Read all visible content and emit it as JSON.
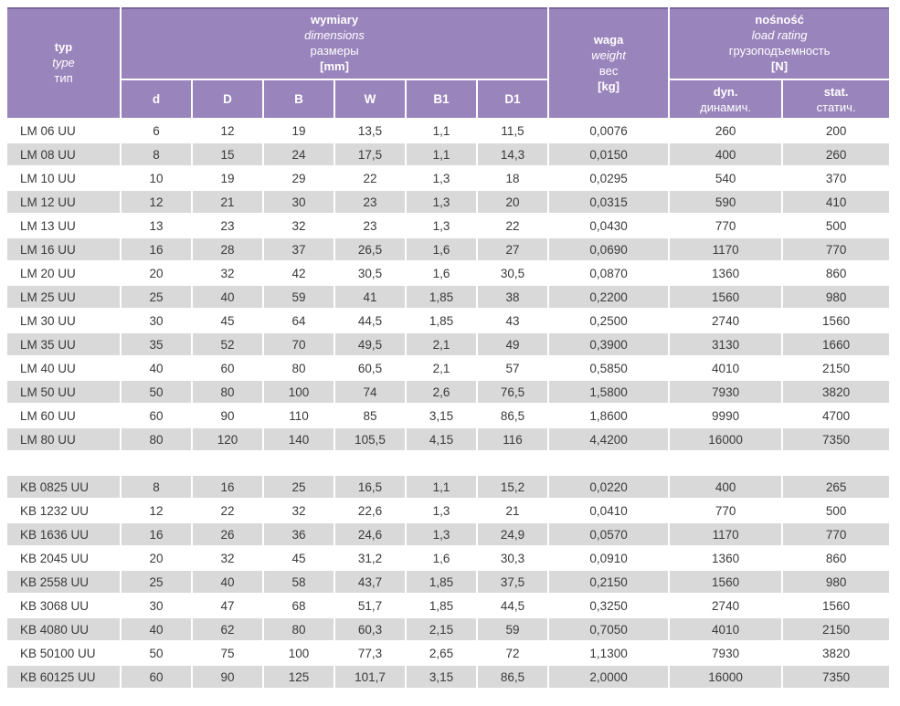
{
  "colors": {
    "header_purple": "#9a84bc",
    "header_purple_edge": "#7d649b",
    "row_gray": "#d9d9d9",
    "data_text": "#3a3a3a",
    "header_text": "#ffffff"
  },
  "header": {
    "type_col": {
      "lines": [
        "typ",
        "type",
        "тип"
      ]
    },
    "dimensions": {
      "lines": [
        "wymiary",
        "dimensions",
        "размеры",
        "[mm]"
      ]
    },
    "weight": {
      "lines": [
        "waga",
        "weight",
        "вес",
        "[kg]"
      ]
    },
    "load_rating": {
      "lines": [
        "nośność",
        "load rating",
        "грузоподъемность",
        "[N]"
      ]
    },
    "dim_subcols": [
      "d",
      "D",
      "B",
      "W",
      "B1",
      "D1"
    ],
    "load_subcols": [
      {
        "top": "dyn.",
        "bottom": "динамич."
      },
      {
        "top": "stat.",
        "bottom": "статич."
      }
    ]
  },
  "table": {
    "groups": [
      {
        "series": "LM",
        "rows": [
          {
            "typ": "LM 06 UU",
            "cells": [
              "6",
              "12",
              "19",
              "13,5",
              "1,1",
              "11,5",
              "0,0076",
              "260",
              "200"
            ]
          },
          {
            "typ": "LM 08 UU",
            "cells": [
              "8",
              "15",
              "24",
              "17,5",
              "1,1",
              "14,3",
              "0,0150",
              "400",
              "260"
            ]
          },
          {
            "typ": "LM 10 UU",
            "cells": [
              "10",
              "19",
              "29",
              "22",
              "1,3",
              "18",
              "0,0295",
              "540",
              "370"
            ]
          },
          {
            "typ": "LM 12 UU",
            "cells": [
              "12",
              "21",
              "30",
              "23",
              "1,3",
              "20",
              "0,0315",
              "590",
              "410"
            ]
          },
          {
            "typ": "LM 13 UU",
            "cells": [
              "13",
              "23",
              "32",
              "23",
              "1,3",
              "22",
              "0,0430",
              "770",
              "500"
            ]
          },
          {
            "typ": "LM 16 UU",
            "cells": [
              "16",
              "28",
              "37",
              "26,5",
              "1,6",
              "27",
              "0,0690",
              "1170",
              "770"
            ]
          },
          {
            "typ": "LM 20 UU",
            "cells": [
              "20",
              "32",
              "42",
              "30,5",
              "1,6",
              "30,5",
              "0,0870",
              "1360",
              "860"
            ]
          },
          {
            "typ": "LM 25 UU",
            "cells": [
              "25",
              "40",
              "59",
              "41",
              "1,85",
              "38",
              "0,2200",
              "1560",
              "980"
            ]
          },
          {
            "typ": "LM 30 UU",
            "cells": [
              "30",
              "45",
              "64",
              "44,5",
              "1,85",
              "43",
              "0,2500",
              "2740",
              "1560"
            ]
          },
          {
            "typ": "LM 35 UU",
            "cells": [
              "35",
              "52",
              "70",
              "49,5",
              "2,1",
              "49",
              "0,3900",
              "3130",
              "1660"
            ]
          },
          {
            "typ": "LM 40 UU",
            "cells": [
              "40",
              "60",
              "80",
              "60,5",
              "2,1",
              "57",
              "0,5850",
              "4010",
              "2150"
            ]
          },
          {
            "typ": "LM 50 UU",
            "cells": [
              "50",
              "80",
              "100",
              "74",
              "2,6",
              "76,5",
              "1,5800",
              "7930",
              "3820"
            ]
          },
          {
            "typ": "LM 60 UU",
            "cells": [
              "60",
              "90",
              "110",
              "85",
              "3,15",
              "86,5",
              "1,8600",
              "9990",
              "4700"
            ]
          },
          {
            "typ": "LM 80 UU",
            "cells": [
              "80",
              "120",
              "140",
              "105,5",
              "4,15",
              "116",
              "4,4200",
              "16000",
              "7350"
            ]
          }
        ]
      },
      {
        "series": "KB",
        "rows": [
          {
            "typ": "KB 0825 UU",
            "cells": [
              "8",
              "16",
              "25",
              "16,5",
              "1,1",
              "15,2",
              "0,0220",
              "400",
              "265"
            ]
          },
          {
            "typ": "KB 1232 UU",
            "cells": [
              "12",
              "22",
              "32",
              "22,6",
              "1,3",
              "21",
              "0,0410",
              "770",
              "500"
            ]
          },
          {
            "typ": "KB 1636 UU",
            "cells": [
              "16",
              "26",
              "36",
              "24,6",
              "1,3",
              "24,9",
              "0,0570",
              "1170",
              "770"
            ]
          },
          {
            "typ": "KB 2045 UU",
            "cells": [
              "20",
              "32",
              "45",
              "31,2",
              "1,6",
              "30,3",
              "0,0910",
              "1360",
              "860"
            ]
          },
          {
            "typ": "KB 2558 UU",
            "cells": [
              "25",
              "40",
              "58",
              "43,7",
              "1,85",
              "37,5",
              "0,2150",
              "1560",
              "980"
            ]
          },
          {
            "typ": "KB 3068 UU",
            "cells": [
              "30",
              "47",
              "68",
              "51,7",
              "1,85",
              "44,5",
              "0,3250",
              "2740",
              "1560"
            ]
          },
          {
            "typ": "KB 4080 UU",
            "cells": [
              "40",
              "62",
              "80",
              "60,3",
              "2,15",
              "59",
              "0,7050",
              "4010",
              "2150"
            ]
          },
          {
            "typ": "KB 50100 UU",
            "cells": [
              "50",
              "75",
              "100",
              "77,3",
              "2,65",
              "72",
              "1,1300",
              "7930",
              "3820"
            ]
          },
          {
            "typ": "KB 60125 UU",
            "cells": [
              "60",
              "90",
              "125",
              "101,7",
              "3,15",
              "86,5",
              "2,0000",
              "16000",
              "7350"
            ]
          }
        ]
      }
    ]
  }
}
